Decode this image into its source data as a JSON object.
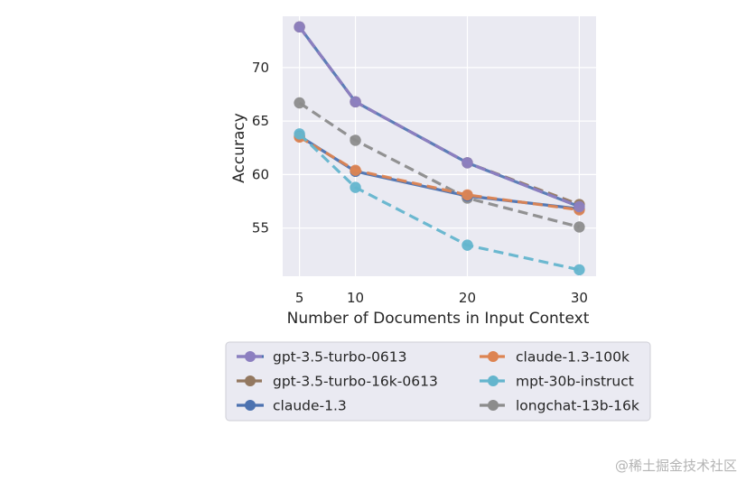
{
  "chart_data": {
    "type": "line",
    "title": "",
    "xlabel": "Number of Documents in Input Context",
    "ylabel": "Accuracy",
    "x": [
      5,
      10,
      20,
      30
    ],
    "x_ticks": [
      "5",
      "10",
      "20",
      "30"
    ],
    "y_ticks": [
      "55",
      "60",
      "65",
      "70"
    ],
    "xlim": [
      3.5,
      31.5
    ],
    "ylim": [
      50.5,
      74.8
    ],
    "grid": true,
    "legend_placement": "below",
    "series": [
      {
        "name": "gpt-3.5-turbo-0613",
        "values": [
          73.8,
          66.8,
          61.1,
          57.0
        ],
        "color": "#8c7fc0",
        "style": "dashed-over-solid"
      },
      {
        "name": "gpt-3.5-turbo-16k-0613",
        "values": [
          73.8,
          66.8,
          61.1,
          57.2
        ],
        "color": "#937860",
        "style": "dashed"
      },
      {
        "name": "claude-1.3",
        "values": [
          63.6,
          60.3,
          58.0,
          56.8
        ],
        "color": "#4c72b0",
        "style": "solid"
      },
      {
        "name": "claude-1.3-100k",
        "values": [
          63.5,
          60.4,
          58.1,
          56.7
        ],
        "color": "#dd8452",
        "style": "dashed"
      },
      {
        "name": "mpt-30b-instruct",
        "values": [
          63.8,
          58.8,
          53.4,
          51.1
        ],
        "color": "#64b5cd",
        "style": "dashed"
      },
      {
        "name": "longchat-13b-16k",
        "values": [
          66.7,
          63.2,
          57.8,
          55.1
        ],
        "color": "#8c8c8c",
        "style": "dashed"
      }
    ]
  },
  "watermark": "@稀土掘金技术社区",
  "colors": {
    "plot_background": "#eaeaf2",
    "grid": "#ffffff",
    "legend_background": "#eaeaf2"
  }
}
